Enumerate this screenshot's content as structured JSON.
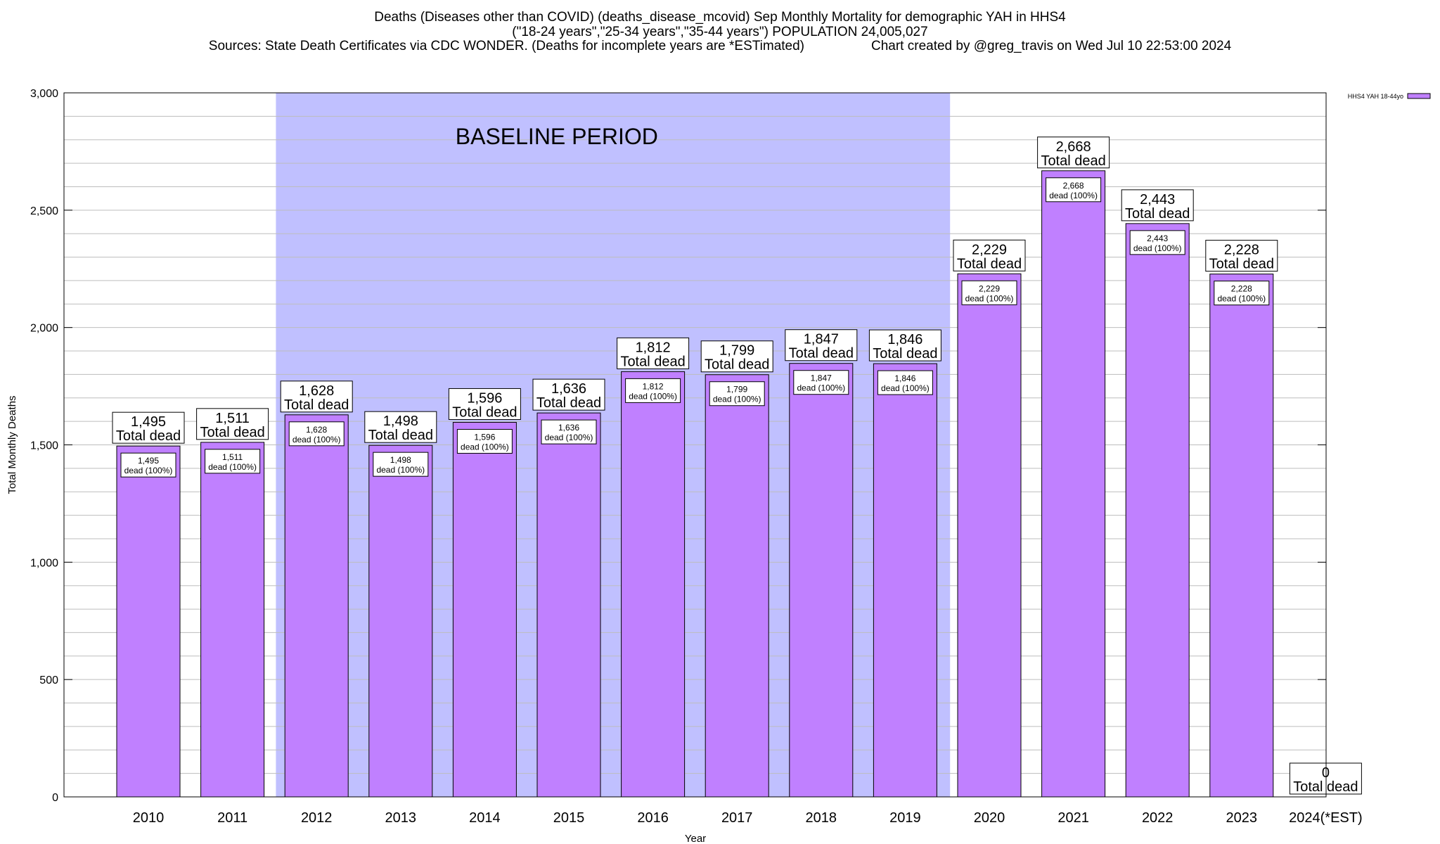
{
  "chart_data": {
    "type": "bar",
    "title": "Deaths (Diseases other than COVID) (deaths_disease_mcovid) Sep Monthly Mortality for demographic YAH in HHS4",
    "subtitle": "(\"18-24 years\",\"25-34 years\",\"35-44 years\") POPULATION 24,005,027",
    "sources": "Sources: State Death Certificates via CDC WONDER. (Deaths for incomplete years are *ESTimated)",
    "credit": "Chart created by @greg_travis on Wed Jul 10 22:53:00 2024",
    "xlabel": "Year",
    "ylabel": "Total Monthly Deaths",
    "ylim": [
      0,
      3000
    ],
    "yticks": [
      0,
      500,
      1000,
      1500,
      2000,
      2500,
      3000
    ],
    "ytick_labels": [
      "0",
      "500",
      "1,000",
      "1,500",
      "2,000",
      "2,500",
      "3,000"
    ],
    "categories": [
      "2010",
      "2011",
      "2012",
      "2013",
      "2014",
      "2015",
      "2016",
      "2017",
      "2018",
      "2019",
      "2020",
      "2021",
      "2022",
      "2023",
      "2024(*EST)"
    ],
    "series": [
      {
        "name": "HHS4 YAH 18-44yo",
        "color": "#c080ff",
        "values": [
          1495,
          1511,
          1628,
          1498,
          1596,
          1636,
          1812,
          1799,
          1847,
          1846,
          2229,
          2668,
          2443,
          2228,
          0
        ]
      }
    ],
    "top_labels": [
      "1,495",
      "1,511",
      "1,628",
      "1,498",
      "1,596",
      "1,636",
      "1,812",
      "1,799",
      "1,847",
      "1,846",
      "2,229",
      "2,668",
      "2,443",
      "2,228",
      "0"
    ],
    "top_label_suffix": "Total dead",
    "inner_labels": [
      "1,495",
      "1,511",
      "1,628",
      "1,498",
      "1,596",
      "1,636",
      "1,812",
      "1,799",
      "1,847",
      "1,846",
      "2,229",
      "2,668",
      "2,443",
      "2,228"
    ],
    "inner_label_suffix": "dead (100%)",
    "baseline": {
      "label": "BASELINE PERIOD",
      "from": "2012",
      "to": "2019",
      "color": "#c0c0ff"
    },
    "legend": "top-right",
    "grid": true
  }
}
